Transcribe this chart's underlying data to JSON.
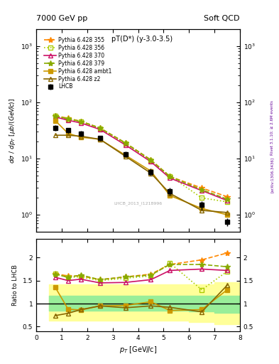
{
  "title_left": "7000 GeV pp",
  "title_right": "Soft QCD",
  "plot_title": "pT(D*) (y-3.0-3.5)",
  "xlabel": "p$_{T}$ [GeV//c]",
  "ylabel_top": "dσ / dp$_{T}$ [μb/(GeV//c)]",
  "ylabel_bot": "Ratio to LHCB",
  "watermark": "LHCB_2013_I1218996",
  "right_label": "Rivet 3.1.10; ≥ 2.6M events",
  "arxiv": "[arXiv:1306.3436]",
  "pt_values": [
    0.75,
    1.25,
    1.75,
    2.5,
    3.5,
    4.5,
    5.25,
    6.5,
    7.5
  ],
  "lhcb_y": [
    35.0,
    32.0,
    28.0,
    23.0,
    12.0,
    5.8,
    2.6,
    1.5,
    0.75
  ],
  "lhcb_yerr": [
    4.0,
    3.5,
    3.0,
    2.5,
    1.5,
    0.8,
    0.4,
    0.25,
    0.12
  ],
  "p355_y": [
    58.0,
    52.0,
    46.0,
    35.0,
    19.0,
    9.5,
    4.8,
    3.0,
    2.1
  ],
  "p356_y": [
    58.0,
    50.0,
    45.0,
    34.0,
    18.5,
    9.2,
    4.9,
    2.0,
    1.7
  ],
  "p370_y": [
    55.0,
    48.0,
    43.0,
    33.0,
    17.5,
    8.8,
    4.5,
    2.7,
    1.8
  ],
  "p379_y": [
    57.0,
    51.0,
    46.0,
    35.0,
    19.0,
    9.4,
    4.8,
    2.8,
    1.9
  ],
  "pambt1_y": [
    47.0,
    28.0,
    24.0,
    22.0,
    11.5,
    6.0,
    2.2,
    1.3,
    1.0
  ],
  "pt2_y": [
    26.0,
    26.0,
    25.0,
    22.0,
    11.0,
    5.5,
    2.4,
    1.2,
    1.1
  ],
  "r355": [
    1.65,
    1.6,
    1.6,
    1.52,
    1.58,
    1.64,
    1.85,
    1.95,
    2.1
  ],
  "r356": [
    1.65,
    1.57,
    1.58,
    1.5,
    1.55,
    1.6,
    1.88,
    1.3,
    1.7
  ],
  "r370": [
    1.57,
    1.5,
    1.53,
    1.45,
    1.46,
    1.52,
    1.72,
    1.75,
    1.72
  ],
  "r379": [
    1.64,
    1.57,
    1.62,
    1.52,
    1.58,
    1.62,
    1.85,
    1.85,
    1.8
  ],
  "rambt1": [
    1.35,
    0.88,
    0.86,
    0.95,
    0.96,
    1.04,
    0.85,
    0.87,
    1.3
  ],
  "rt2": [
    0.74,
    0.79,
    0.87,
    0.95,
    0.91,
    0.95,
    0.92,
    0.82,
    1.4
  ],
  "band_x": [
    0.5,
    1.0,
    1.5,
    2.0,
    3.0,
    4.0,
    5.0,
    6.0,
    7.0,
    8.0
  ],
  "band_yellow_lo": [
    0.63,
    0.63,
    0.63,
    0.63,
    0.63,
    0.63,
    0.63,
    0.6,
    0.55
  ],
  "band_yellow_hi": [
    1.42,
    1.42,
    1.42,
    1.42,
    1.42,
    1.42,
    1.42,
    1.42,
    1.47
  ],
  "band_green_lo": [
    0.85,
    0.85,
    0.85,
    0.85,
    0.85,
    0.85,
    0.85,
    0.83,
    0.8
  ],
  "band_green_hi": [
    1.17,
    1.17,
    1.17,
    1.17,
    1.17,
    1.17,
    1.17,
    1.17,
    1.17
  ],
  "color_355": "#ff8800",
  "color_356": "#aacc00",
  "color_370": "#cc1166",
  "color_379": "#88aa00",
  "color_ambt1": "#cc9900",
  "color_t2": "#886600",
  "color_lhcb": "#000000",
  "color_yellow_band": "#ffff99",
  "color_green_band": "#99ee99"
}
